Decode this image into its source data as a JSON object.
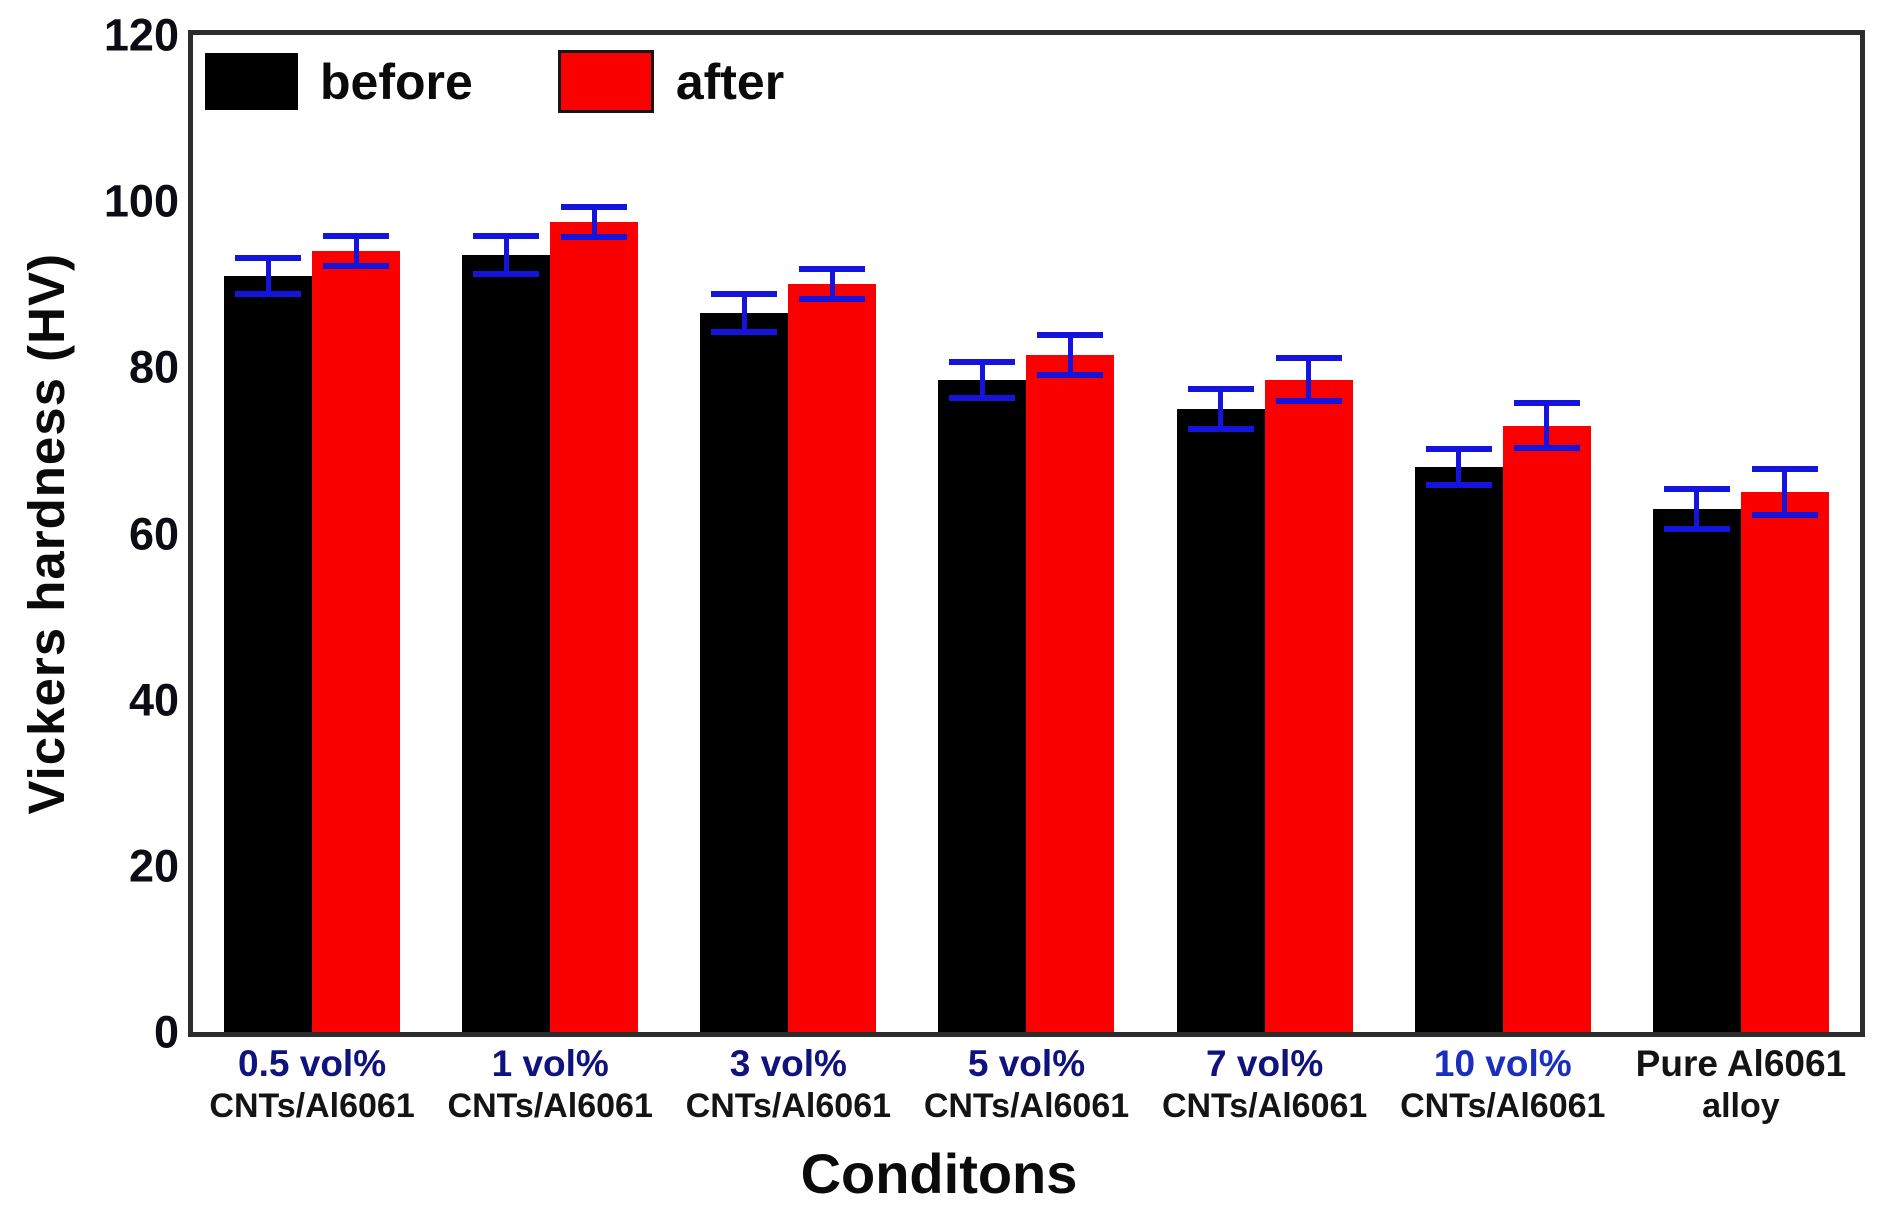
{
  "chart_data": {
    "type": "bar",
    "title": "",
    "ylabel": "Vickers hardness (HV)",
    "xlabel": "Conditons",
    "ylim": [
      0,
      120
    ],
    "yticks": [
      120,
      100,
      80,
      60,
      40,
      20,
      0
    ],
    "grid": false,
    "legend_position": "top-left-inside",
    "error_bar_color": "#1414dd",
    "categories": [
      {
        "line1": "0.5 vol%",
        "line2": "CNTs/Al6061",
        "line1_color": "#10127e"
      },
      {
        "line1": "1 vol%",
        "line2": "CNTs/Al6061",
        "line1_color": "#10127e"
      },
      {
        "line1": "3 vol%",
        "line2": "CNTs/Al6061",
        "line1_color": "#10127e"
      },
      {
        "line1": "5 vol%",
        "line2": "CNTs/Al6061",
        "line1_color": "#10127e"
      },
      {
        "line1": "7 vol%",
        "line2": "CNTs/Al6061",
        "line1_color": "#10127e"
      },
      {
        "line1": "10 vol%",
        "line2": "CNTs/Al6061",
        "line1_color": "#1a2fbe"
      },
      {
        "line1": "Pure Al6061",
        "line2": "alloy",
        "line1_color": "#141414"
      }
    ],
    "series": [
      {
        "name": "before",
        "color": "#000000",
        "values": [
          91,
          93.5,
          86.5,
          78.5,
          75,
          68,
          63
        ],
        "errors": [
          2.2,
          2.3,
          2.3,
          2.2,
          2.4,
          2.2,
          2.4
        ]
      },
      {
        "name": "after",
        "color": "#fb0000",
        "values": [
          94,
          97.5,
          90,
          81.5,
          78.5,
          73,
          65
        ],
        "errors": [
          1.8,
          1.8,
          1.8,
          2.4,
          2.6,
          2.7,
          2.8
        ]
      }
    ]
  }
}
